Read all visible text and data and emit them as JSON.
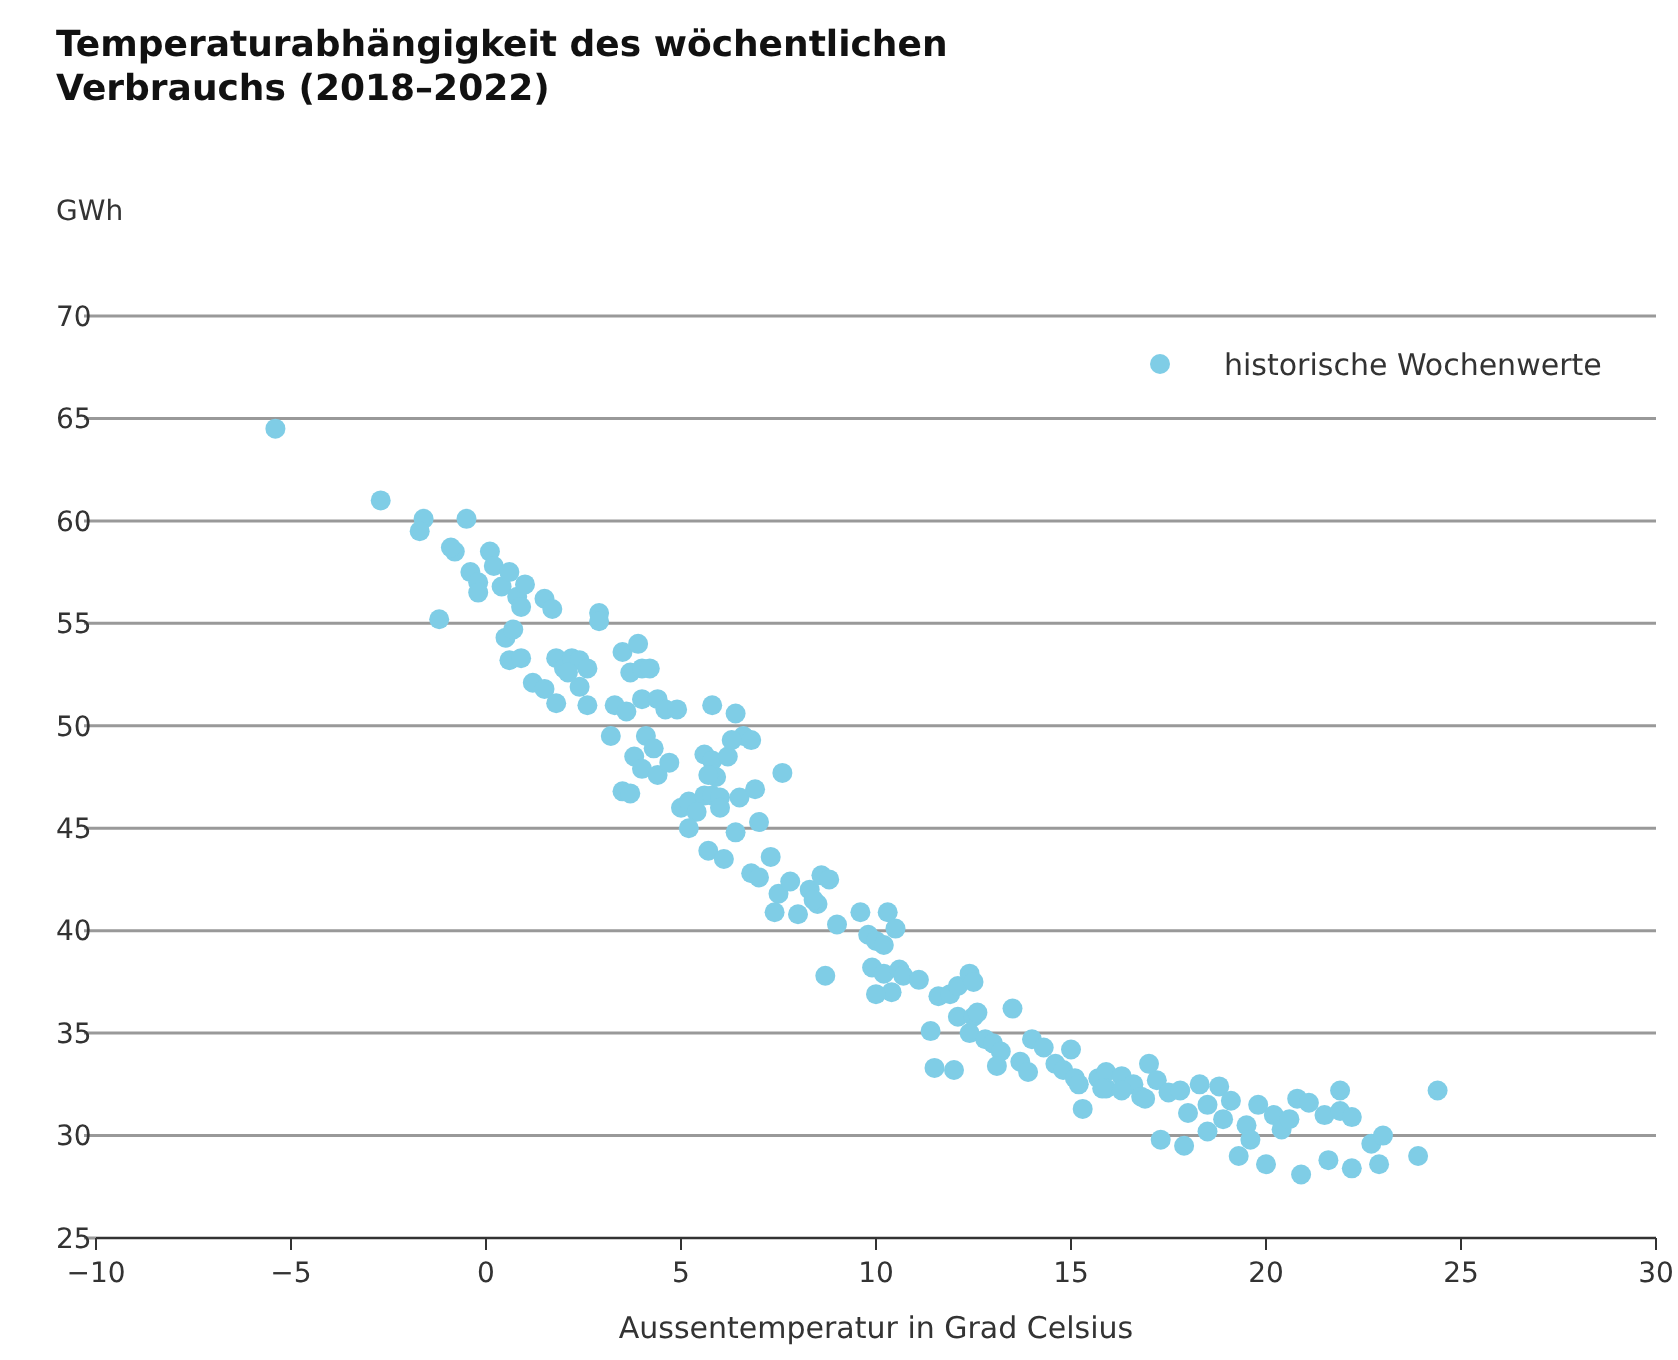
{
  "chart_data": {
    "type": "scatter",
    "title": "Temperaturabhängigkeit des wöchentlichen Verbrauchs (2018–2022)",
    "xlabel": "Aussentemperatur in Grad Celsius",
    "ylabel": "GWh",
    "xlim": [
      -10,
      30
    ],
    "xticks": [
      {
        "value": -10,
        "label": "−10"
      },
      {
        "value": -5,
        "label": "−5"
      },
      0,
      5,
      10,
      15,
      20,
      25,
      30
    ],
    "ylim": [
      25,
      70
    ],
    "yticks": [
      25,
      30,
      35,
      40,
      45,
      50,
      55,
      60,
      65,
      70
    ],
    "grid": "y",
    "legend": "top right",
    "marker": "circle",
    "series": [
      {
        "name": "historische Wochenwerte",
        "color": "#7fcde6",
        "x": [
          -5.4,
          -2.7,
          -1.6,
          -1.7,
          -0.5,
          -1.2,
          -0.8,
          -0.9,
          -0.4,
          -0.2,
          -0.2,
          0.1,
          0.2,
          0.4,
          0.6,
          0.8,
          0.9,
          1.0,
          0.5,
          0.7,
          0.6,
          0.9,
          1.5,
          1.7,
          1.2,
          1.5,
          1.8,
          2.0,
          2.2,
          2.4,
          2.1,
          2.6,
          2.4,
          1.8,
          2.6,
          2.9,
          2.9,
          3.3,
          3.2,
          3.5,
          3.9,
          3.7,
          4.0,
          4.2,
          3.6,
          4.0,
          4.4,
          4.6,
          4.1,
          4.3,
          3.8,
          4.0,
          4.4,
          4.7,
          3.5,
          3.7,
          4.9,
          5.0,
          5.2,
          5.6,
          5.8,
          6.0,
          5.4,
          5.2,
          5.6,
          5.8,
          6.2,
          5.9,
          5.7,
          5.8,
          6.4,
          6.6,
          6.3,
          6.8,
          6.0,
          6.5,
          6.9,
          5.7,
          6.1,
          6.4,
          6.8,
          7.0,
          7.5,
          7.3,
          7.6,
          7.0,
          7.8,
          8.3,
          8.5,
          8.6,
          8.8,
          7.4,
          8.0,
          8.4,
          9.0,
          8.7,
          9.6,
          9.8,
          10.0,
          10.2,
          10.3,
          10.5,
          9.9,
          10.2,
          10.6,
          10.4,
          10.7,
          10.0,
          11.1,
          11.6,
          11.9,
          12.1,
          12.4,
          12.5,
          12.1,
          12.5,
          12.6,
          12.4,
          12.8,
          13.0,
          11.4,
          11.5,
          12.0,
          13.5,
          13.2,
          13.7,
          14.0,
          14.3,
          13.1,
          13.9,
          14.6,
          15.0,
          14.8,
          15.1,
          15.2,
          15.7,
          15.9,
          16.3,
          16.6,
          17.0,
          15.3,
          15.9,
          16.3,
          16.8,
          17.2,
          17.5,
          17.3,
          17.8,
          18.3,
          18.8,
          18.0,
          18.5,
          18.9,
          17.9,
          18.5,
          19.1,
          19.5,
          19.8,
          19.3,
          20.2,
          20.4,
          20.0,
          20.8,
          21.1,
          21.5,
          21.9,
          21.9,
          22.2,
          20.9,
          21.6,
          22.2,
          22.7,
          23.0,
          22.9,
          23.9,
          24.4,
          15.8,
          16.9,
          19.6,
          20.6
        ],
        "values": [
          64.5,
          61,
          60.1,
          59.5,
          60.1,
          55.2,
          58.5,
          58.7,
          57.5,
          57,
          56.5,
          58.5,
          57.8,
          56.8,
          57.5,
          56.3,
          55.8,
          56.9,
          54.3,
          54.7,
          53.2,
          53.3,
          56.2,
          55.7,
          52.1,
          51.8,
          53.3,
          52.8,
          53.3,
          53.2,
          52.6,
          52.8,
          51.9,
          51.1,
          51,
          55.5,
          55.1,
          51,
          49.5,
          53.6,
          54,
          52.6,
          52.8,
          52.8,
          50.7,
          51.3,
          51.3,
          50.8,
          49.5,
          48.9,
          48.5,
          47.9,
          47.6,
          48.2,
          46.8,
          46.7,
          50.8,
          46,
          46.3,
          46.6,
          46.6,
          46.5,
          45.8,
          45,
          48.6,
          48.3,
          48.5,
          47.5,
          47.6,
          51,
          50.6,
          49.5,
          49.3,
          49.3,
          46,
          46.5,
          46.9,
          43.9,
          43.5,
          44.8,
          42.8,
          42.6,
          41.8,
          43.6,
          47.7,
          45.3,
          42.4,
          42,
          41.3,
          42.7,
          42.5,
          40.9,
          40.8,
          41.5,
          40.3,
          37.8,
          40.9,
          39.8,
          39.5,
          39.3,
          40.9,
          40.1,
          38.2,
          37.9,
          38.1,
          37,
          37.8,
          36.9,
          37.6,
          36.8,
          36.9,
          37.3,
          37.9,
          37.5,
          35.8,
          35.8,
          36,
          35,
          34.7,
          34.5,
          35.1,
          33.3,
          33.2,
          36.2,
          34.1,
          33.6,
          34.7,
          34.3,
          33.4,
          33.1,
          33.5,
          34.2,
          33.2,
          32.8,
          32.5,
          32.8,
          33.1,
          32.9,
          32.5,
          33.5,
          31.3,
          32.3,
          32.2,
          31.9,
          32.7,
          32.1,
          29.8,
          32.2,
          32.5,
          32.4,
          31.1,
          31.5,
          30.8,
          29.5,
          30.2,
          31.7,
          30.5,
          31.5,
          29,
          31,
          30.3,
          28.6,
          31.8,
          31.6,
          31,
          31.2,
          32.2,
          30.9,
          28.1,
          28.8,
          28.4,
          29.6,
          30,
          28.6,
          29,
          32.2,
          32.3,
          31.8,
          29.8,
          30.8
        ]
      }
    ]
  }
}
